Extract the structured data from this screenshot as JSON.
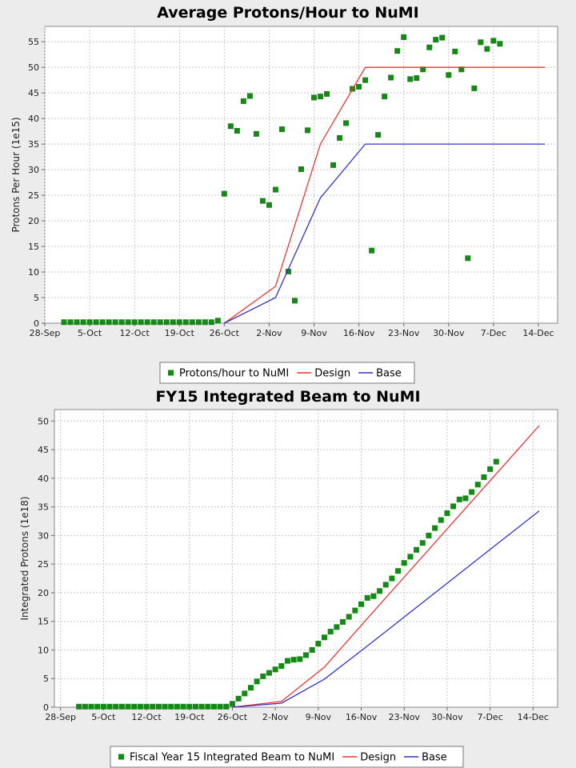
{
  "chart_data": [
    {
      "type": "line",
      "title": "Average Protons/Hour to NuMI",
      "xlabel": "",
      "ylabel": "Protons Per Hour (1e15)",
      "x_tick_labels": [
        "28-Sep",
        "5-Oct",
        "12-Oct",
        "19-Oct",
        "26-Oct",
        "2-Nov",
        "9-Nov",
        "16-Nov",
        "23-Nov",
        "30-Nov",
        "7-Dec",
        "14-Dec"
      ],
      "xlim": [
        "2014-09-28",
        "2014-12-17"
      ],
      "ylim": [
        0,
        58
      ],
      "y_ticks": [
        0,
        5,
        10,
        15,
        20,
        25,
        30,
        35,
        40,
        45,
        50,
        55
      ],
      "grid": true,
      "legend_position": "bottom",
      "series": [
        {
          "name": "Protons/hour to NuMI",
          "kind": "scatter",
          "color": "#138a13",
          "points": [
            [
              "2014-10-01",
              0.2
            ],
            [
              "2014-10-02",
              0.2
            ],
            [
              "2014-10-03",
              0.2
            ],
            [
              "2014-10-04",
              0.2
            ],
            [
              "2014-10-05",
              0.2
            ],
            [
              "2014-10-06",
              0.2
            ],
            [
              "2014-10-07",
              0.2
            ],
            [
              "2014-10-08",
              0.2
            ],
            [
              "2014-10-09",
              0.2
            ],
            [
              "2014-10-10",
              0.2
            ],
            [
              "2014-10-11",
              0.2
            ],
            [
              "2014-10-12",
              0.2
            ],
            [
              "2014-10-13",
              0.2
            ],
            [
              "2014-10-14",
              0.2
            ],
            [
              "2014-10-15",
              0.2
            ],
            [
              "2014-10-16",
              0.2
            ],
            [
              "2014-10-17",
              0.2
            ],
            [
              "2014-10-18",
              0.2
            ],
            [
              "2014-10-19",
              0.2
            ],
            [
              "2014-10-20",
              0.2
            ],
            [
              "2014-10-21",
              0.2
            ],
            [
              "2014-10-22",
              0.2
            ],
            [
              "2014-10-23",
              0.2
            ],
            [
              "2014-10-24",
              0.2
            ],
            [
              "2014-10-25",
              0.5
            ],
            [
              "2014-10-26",
              25.3
            ],
            [
              "2014-10-27",
              38.5
            ],
            [
              "2014-10-28",
              37.6
            ],
            [
              "2014-10-29",
              43.4
            ],
            [
              "2014-10-30",
              44.4
            ],
            [
              "2014-10-31",
              37
            ],
            [
              "2014-11-01",
              23.9
            ],
            [
              "2014-11-02",
              23.1
            ],
            [
              "2014-11-03",
              26.1
            ],
            [
              "2014-11-04",
              37.9
            ],
            [
              "2014-11-05",
              10.1
            ],
            [
              "2014-11-06",
              4.4
            ],
            [
              "2014-11-07",
              30.1
            ],
            [
              "2014-11-08",
              37.7
            ],
            [
              "2014-11-09",
              44.1
            ],
            [
              "2014-11-10",
              44.3
            ],
            [
              "2014-11-11",
              44.8
            ],
            [
              "2014-11-12",
              30.9
            ],
            [
              "2014-11-13",
              36.2
            ],
            [
              "2014-11-14",
              39.1
            ],
            [
              "2014-11-15",
              45.8
            ],
            [
              "2014-11-16",
              46.2
            ],
            [
              "2014-11-17",
              47.5
            ],
            [
              "2014-11-18",
              14.2
            ],
            [
              "2014-11-19",
              36.8
            ],
            [
              "2014-11-20",
              44.3
            ],
            [
              "2014-11-21",
              48
            ],
            [
              "2014-11-22",
              53.2
            ],
            [
              "2014-11-23",
              55.9
            ],
            [
              "2014-11-24",
              47.7
            ],
            [
              "2014-11-25",
              47.9
            ],
            [
              "2014-11-26",
              49.6
            ],
            [
              "2014-11-27",
              53.9
            ],
            [
              "2014-11-28",
              55.4
            ],
            [
              "2014-11-29",
              55.8
            ],
            [
              "2014-11-30",
              48.5
            ],
            [
              "2014-12-01",
              53.1
            ],
            [
              "2014-12-02",
              49.6
            ],
            [
              "2014-12-03",
              12.7
            ],
            [
              "2014-12-04",
              45.9
            ],
            [
              "2014-12-05",
              54.9
            ],
            [
              "2014-12-06",
              53.6
            ],
            [
              "2014-12-07",
              55.2
            ],
            [
              "2014-12-08",
              54.6
            ]
          ]
        },
        {
          "name": "Design",
          "kind": "line",
          "color": "#ee3333",
          "points": [
            [
              "2014-10-26",
              0
            ],
            [
              "2014-11-03",
              7.2
            ],
            [
              "2014-11-10",
              35
            ],
            [
              "2014-11-17",
              50
            ],
            [
              "2014-12-15",
              50
            ]
          ]
        },
        {
          "name": "Base",
          "kind": "line",
          "color": "#3333cc",
          "points": [
            [
              "2014-10-26",
              0
            ],
            [
              "2014-11-03",
              5
            ],
            [
              "2014-11-10",
              24.5
            ],
            [
              "2014-11-17",
              35
            ],
            [
              "2014-12-15",
              35
            ]
          ]
        }
      ]
    },
    {
      "type": "line",
      "title": "FY15 Integrated Beam to NuMI",
      "xlabel": "",
      "ylabel": "Integrated Protons (1e18)",
      "x_tick_labels": [
        "28-Sep",
        "5-Oct",
        "12-Oct",
        "19-Oct",
        "26-Oct",
        "2-Nov",
        "9-Nov",
        "16-Nov",
        "23-Nov",
        "30-Nov",
        "7-Dec",
        "14-Dec"
      ],
      "xlim": [
        "2014-09-27",
        "2014-12-18"
      ],
      "ylim": [
        0,
        52
      ],
      "y_ticks": [
        0,
        5,
        10,
        15,
        20,
        25,
        30,
        35,
        40,
        45,
        50
      ],
      "grid": true,
      "legend_position": "bottom",
      "series": [
        {
          "name": "Fiscal Year 15 Integrated Beam to NuMI",
          "kind": "scatter",
          "color": "#138a13",
          "points": [
            [
              "2014-10-01",
              0.1
            ],
            [
              "2014-10-02",
              0.1
            ],
            [
              "2014-10-03",
              0.1
            ],
            [
              "2014-10-04",
              0.1
            ],
            [
              "2014-10-05",
              0.1
            ],
            [
              "2014-10-06",
              0.1
            ],
            [
              "2014-10-07",
              0.1
            ],
            [
              "2014-10-08",
              0.1
            ],
            [
              "2014-10-09",
              0.1
            ],
            [
              "2014-10-10",
              0.1
            ],
            [
              "2014-10-11",
              0.1
            ],
            [
              "2014-10-12",
              0.1
            ],
            [
              "2014-10-13",
              0.1
            ],
            [
              "2014-10-14",
              0.1
            ],
            [
              "2014-10-15",
              0.1
            ],
            [
              "2014-10-16",
              0.1
            ],
            [
              "2014-10-17",
              0.1
            ],
            [
              "2014-10-18",
              0.1
            ],
            [
              "2014-10-19",
              0.1
            ],
            [
              "2014-10-20",
              0.1
            ],
            [
              "2014-10-21",
              0.1
            ],
            [
              "2014-10-22",
              0.1
            ],
            [
              "2014-10-23",
              0.1
            ],
            [
              "2014-10-24",
              0.1
            ],
            [
              "2014-10-25",
              0.1
            ],
            [
              "2014-10-26",
              0.6
            ],
            [
              "2014-10-27",
              1.5
            ],
            [
              "2014-10-28",
              2.4
            ],
            [
              "2014-10-29",
              3.4
            ],
            [
              "2014-10-30",
              4.5
            ],
            [
              "2014-10-31",
              5.4
            ],
            [
              "2014-11-01",
              6.0
            ],
            [
              "2014-11-02",
              6.6
            ],
            [
              "2014-11-03",
              7.2
            ],
            [
              "2014-11-04",
              8.1
            ],
            [
              "2014-11-05",
              8.3
            ],
            [
              "2014-11-06",
              8.4
            ],
            [
              "2014-11-07",
              9.1
            ],
            [
              "2014-11-08",
              10.0
            ],
            [
              "2014-11-09",
              11.1
            ],
            [
              "2014-11-10",
              12.2
            ],
            [
              "2014-11-11",
              13.2
            ],
            [
              "2014-11-12",
              14.0
            ],
            [
              "2014-11-13",
              14.9
            ],
            [
              "2014-11-14",
              15.8
            ],
            [
              "2014-11-15",
              16.9
            ],
            [
              "2014-11-16",
              18.0
            ],
            [
              "2014-11-17",
              19.1
            ],
            [
              "2014-11-18",
              19.4
            ],
            [
              "2014-11-19",
              20.3
            ],
            [
              "2014-11-20",
              21.4
            ],
            [
              "2014-11-21",
              22.5
            ],
            [
              "2014-11-22",
              23.8
            ],
            [
              "2014-11-23",
              25.2
            ],
            [
              "2014-11-24",
              26.3
            ],
            [
              "2014-11-25",
              27.5
            ],
            [
              "2014-11-26",
              28.7
            ],
            [
              "2014-11-27",
              30.0
            ],
            [
              "2014-11-28",
              31.3
            ],
            [
              "2014-11-29",
              32.7
            ],
            [
              "2014-11-30",
              33.9
            ],
            [
              "2014-12-01",
              35.1
            ],
            [
              "2014-12-02",
              36.3
            ],
            [
              "2014-12-03",
              36.5
            ],
            [
              "2014-12-04",
              37.6
            ],
            [
              "2014-12-05",
              38.9
            ],
            [
              "2014-12-06",
              40.2
            ],
            [
              "2014-12-07",
              41.6
            ],
            [
              "2014-12-08",
              42.9
            ]
          ]
        },
        {
          "name": "Design",
          "kind": "line",
          "color": "#ee3333",
          "points": [
            [
              "2014-10-26",
              0
            ],
            [
              "2014-11-03",
              1.0
            ],
            [
              "2014-11-10",
              7.0
            ],
            [
              "2014-11-17",
              15.5
            ],
            [
              "2014-12-15",
              49.2
            ]
          ]
        },
        {
          "name": "Base",
          "kind": "line",
          "color": "#3333cc",
          "points": [
            [
              "2014-10-26",
              0
            ],
            [
              "2014-11-03",
              0.7
            ],
            [
              "2014-11-10",
              4.9
            ],
            [
              "2014-11-17",
              10.7
            ],
            [
              "2014-12-15",
              34.3
            ]
          ]
        }
      ]
    }
  ]
}
